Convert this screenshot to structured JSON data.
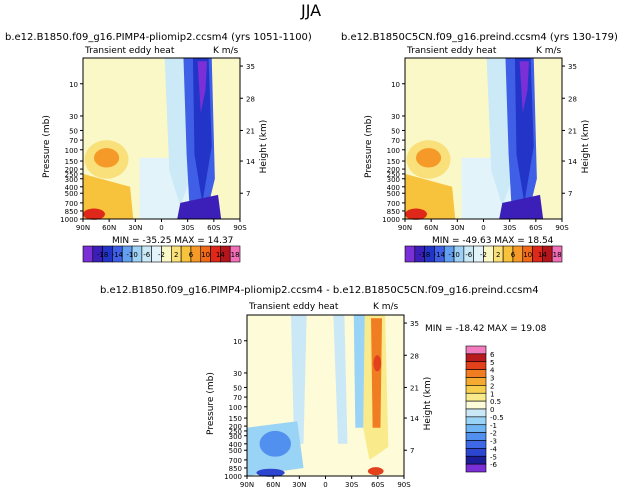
{
  "figure": {
    "season": "JJA"
  },
  "chart_data": [
    {
      "type": "heatmap",
      "title": "b.e12.B1850.f09_g16.PIMP4-pliomip2.ccsm4 (yrs 1051-1100)",
      "left_string": "Transient eddy heat",
      "right_string": "K m/s",
      "ylabel": "Pressure (mb)",
      "ylabel_right": "Height (km)",
      "xticks": [
        "90N",
        "60N",
        "30N",
        "0",
        "30S",
        "60S",
        "90S"
      ],
      "yticks": [
        "10",
        "30",
        "50",
        "70",
        "100",
        "150",
        "200",
        "250",
        "300",
        "400",
        "500",
        "700",
        "850",
        "1000"
      ],
      "height_ticks": [
        "35",
        "28",
        "21",
        "14",
        "7"
      ],
      "stats": "MIN = -35.25   MAX =  14.37",
      "min": -35.25,
      "max": 14.37,
      "colorbar_labels": [
        "-18",
        "-14",
        "-10",
        "-6",
        "-2",
        "2",
        "6",
        "10",
        "14",
        "18"
      ]
    },
    {
      "type": "heatmap",
      "title": "b.e12.B1850C5CN.f09_g16.preind.ccsm4 (yrs 130-179)",
      "left_string": "Transient eddy heat",
      "right_string": "K m/s",
      "ylabel": "Pressure (mb)",
      "ylabel_right": "Height (km)",
      "xticks": [
        "90N",
        "60N",
        "30N",
        "0",
        "30S",
        "60S",
        "90S"
      ],
      "yticks": [
        "10",
        "30",
        "50",
        "70",
        "100",
        "150",
        "200",
        "250",
        "300",
        "400",
        "500",
        "700",
        "850",
        "1000"
      ],
      "height_ticks": [
        "35",
        "28",
        "21",
        "14",
        "7"
      ],
      "stats": "MIN = -49.63   MAX =  18.54",
      "min": -49.63,
      "max": 18.54,
      "colorbar_labels": [
        "-18",
        "-14",
        "-10",
        "-6",
        "-2",
        "2",
        "6",
        "10",
        "14",
        "18"
      ]
    },
    {
      "type": "heatmap",
      "title": "b.e12.B1850.f09_g16.PIMP4-pliomip2.ccsm4 - b.e12.B1850C5CN.f09_g16.preind.ccsm4",
      "left_string": "Transient eddy heat",
      "right_string": "K m/s",
      "ylabel": "Pressure (mb)",
      "ylabel_right": "Height (km)",
      "xticks": [
        "90N",
        "60N",
        "30N",
        "0",
        "30S",
        "60S",
        "90S"
      ],
      "yticks": [
        "10",
        "30",
        "50",
        "70",
        "100",
        "150",
        "200",
        "250",
        "300",
        "400",
        "500",
        "700",
        "850",
        "1000"
      ],
      "height_ticks": [
        "35",
        "28",
        "21",
        "14",
        "7"
      ],
      "stats": "MIN = -18.42   MAX =  19.08",
      "min": -18.42,
      "max": 19.08,
      "colorbar_labels": [
        "6",
        "5",
        "4",
        "3",
        "2",
        "1",
        "0.5",
        "0",
        "-0.5",
        "-1",
        "-2",
        "-3",
        "-4",
        "-5",
        "-6"
      ]
    }
  ],
  "palette": {
    "cb": [
      "#7b2fd6",
      "#3c1fb8",
      "#2335c8",
      "#3f60e6",
      "#64a0f2",
      "#9fd0f5",
      "#cbe9f6",
      "#e2f3fa",
      "#fbf8c8",
      "#f9e07a",
      "#f7c23c",
      "#f59a28",
      "#f06a1a",
      "#e0281a",
      "#b3151a",
      "#f06fb6"
    ],
    "diff": [
      "#7b2fd6",
      "#1c1e99",
      "#2d46d0",
      "#3f68e6",
      "#5190ee",
      "#6fb4f3",
      "#99d3f6",
      "#cbe8f7",
      "#fdfbd8",
      "#f9eb8c",
      "#f7cf4f",
      "#f5aa31",
      "#f17d22",
      "#e2411b",
      "#b81b1e",
      "#f07bbd"
    ]
  }
}
